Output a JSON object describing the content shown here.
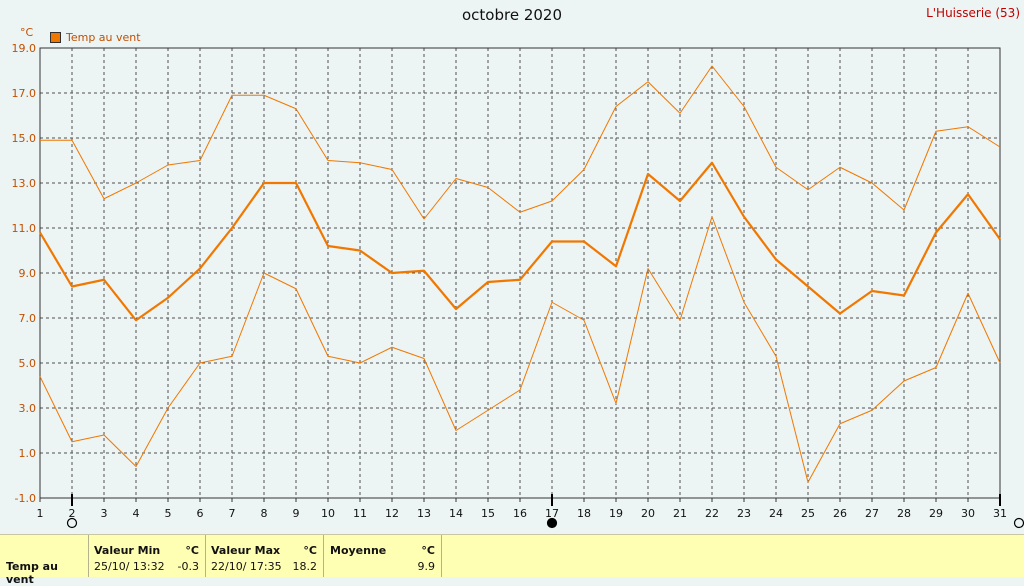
{
  "header": {
    "title": "octobre 2020",
    "station": "L'Huisserie (53)",
    "unit": "°C",
    "legend": "Temp au vent"
  },
  "colors": {
    "background": "#ecf4f4",
    "series": "#f07800",
    "grid": "#505050",
    "station_text": "#c00000",
    "panel": "#ffffb4"
  },
  "chart_data": {
    "type": "line",
    "x": [
      1,
      2,
      3,
      4,
      5,
      6,
      7,
      8,
      9,
      10,
      11,
      12,
      13,
      14,
      15,
      16,
      17,
      18,
      19,
      20,
      21,
      22,
      23,
      24,
      25,
      26,
      27,
      28,
      29,
      30,
      31
    ],
    "xlim": [
      1,
      31
    ],
    "ylim": [
      -1.0,
      19.0
    ],
    "yticks": [
      "-1.0",
      "1.0",
      "3.0",
      "5.0",
      "7.0",
      "9.0",
      "11.0",
      "13.0",
      "15.0",
      "17.0",
      "19.0"
    ],
    "grid": true,
    "legend_position": "top-left",
    "series": [
      {
        "name": "Temp au vent",
        "role": "mean",
        "values": [
          10.8,
          8.4,
          8.7,
          6.9,
          7.9,
          9.2,
          11.0,
          13.0,
          13.0,
          10.2,
          10.0,
          9.0,
          9.1,
          7.4,
          8.6,
          8.7,
          10.4,
          10.4,
          9.3,
          13.4,
          12.2,
          13.9,
          11.5,
          9.6,
          8.4,
          7.2,
          8.2,
          8.0,
          10.8,
          12.5,
          10.5
        ]
      },
      {
        "role": "max",
        "values": [
          14.9,
          14.9,
          12.3,
          13.0,
          13.8,
          14.0,
          16.9,
          16.9,
          16.3,
          14.0,
          13.9,
          13.6,
          11.4,
          13.2,
          12.8,
          11.7,
          12.2,
          13.6,
          16.4,
          17.5,
          16.1,
          18.2,
          16.4,
          13.7,
          12.7,
          13.7,
          13.0,
          11.8,
          15.3,
          15.5,
          14.6
        ]
      },
      {
        "role": "min",
        "values": [
          4.4,
          1.5,
          1.8,
          0.4,
          3.0,
          5.0,
          5.3,
          9.0,
          8.3,
          5.3,
          5.0,
          5.7,
          5.2,
          2.0,
          2.9,
          3.8,
          7.7,
          6.9,
          3.2,
          9.2,
          6.9,
          11.5,
          7.7,
          5.3,
          -0.3,
          2.3,
          2.9,
          4.2,
          4.8,
          8.1,
          5.0
        ]
      }
    ],
    "markers": [
      {
        "day": 2,
        "symbol": "new-moon-outline"
      },
      {
        "day": 17,
        "symbol": "full-moon-filled"
      },
      {
        "day": 31,
        "symbol": "new-moon-outline"
      }
    ]
  },
  "summary": {
    "row_label": "Temp au vent",
    "min": {
      "header": "Valeur Min",
      "unit": "°C",
      "date": "25/10/ 13:32",
      "value": "-0.3"
    },
    "max": {
      "header": "Valeur Max",
      "unit": "°C",
      "date": "22/10/ 17:35",
      "value": "18.2"
    },
    "avg": {
      "header": "Moyenne",
      "unit": "°C",
      "value": "9.9"
    }
  }
}
